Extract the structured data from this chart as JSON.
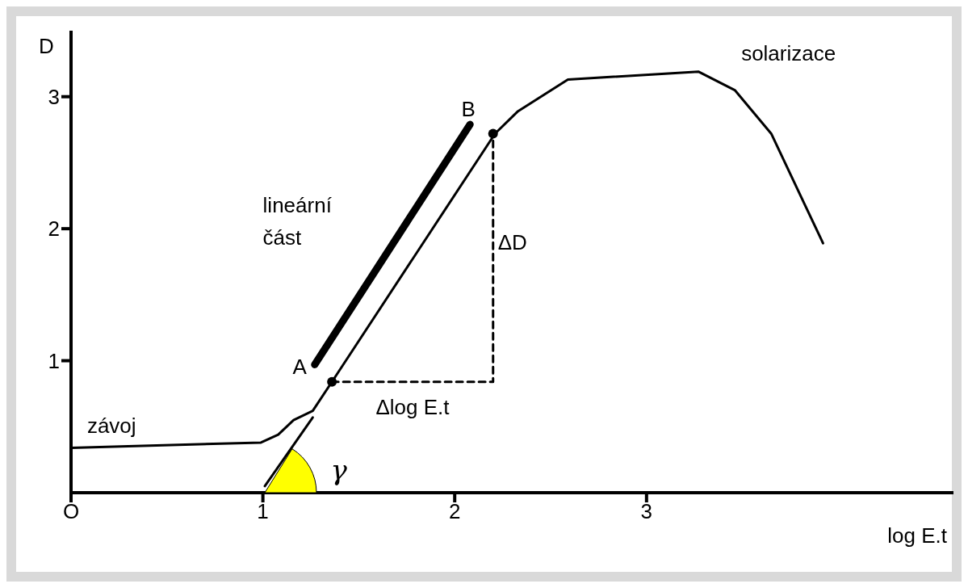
{
  "chart_data": {
    "type": "line",
    "xlabel": "log E.t",
    "ylabel": "D",
    "xlim": [
      0,
      4.6
    ],
    "ylim": [
      0,
      3.5
    ],
    "xticks": [
      {
        "value": 0,
        "label": "O"
      },
      1,
      2,
      3
    ],
    "yticks": [
      1,
      2,
      3
    ],
    "marker": "none",
    "line_style": "solid",
    "series": [
      {
        "color": "#000000",
        "x": [
          0,
          0.99,
          1.08,
          1.16,
          1.26,
          1.36,
          2.21,
          2.33,
          2.59,
          3.27,
          3.46,
          3.65,
          3.92
        ],
        "values": [
          0.34,
          0.38,
          0.44,
          0.55,
          0.62,
          0.84,
          2.72,
          2.89,
          3.13,
          3.19,
          3.05,
          2.72,
          1.89
        ]
      },
      {
        "color": "#000000",
        "x": [
          1.27,
          2.08
        ],
        "values": [
          0.97,
          2.79
        ]
      },
      {
        "color": "#000000",
        "x": [
          1.01,
          1.26
        ],
        "values": [
          0.05,
          0.57
        ]
      },
      {
        "color": "#000000",
        "line_style": "dashed",
        "x": [
          1.36,
          2.2,
          2.2
        ],
        "values": [
          0.84,
          0.84,
          2.72
        ]
      },
      {
        "type": "scatter",
        "marker": "circle",
        "color": "#000000",
        "x": [
          1.36,
          2.2
        ],
        "values": [
          0.84,
          2.72
        ]
      }
    ],
    "annotations": [
      {
        "text": "A",
        "x": 1.27,
        "y": 0.97
      },
      {
        "text": "B",
        "x": 2.08,
        "y": 2.79
      },
      {
        "text": "ΔD",
        "x": 2.2,
        "y": 1.9
      },
      {
        "text": "Δlog E.t",
        "x": 1.78,
        "y": 0.84
      },
      {
        "text": "závoj",
        "x": 0.05,
        "y": 0.34
      },
      "solarizace",
      "lineární\nčást",
      "γ"
    ]
  }
}
